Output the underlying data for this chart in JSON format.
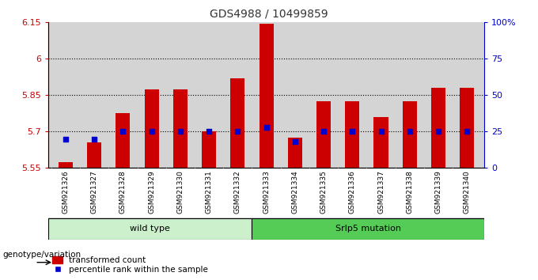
{
  "title": "GDS4988 / 10499859",
  "samples": [
    "GSM921326",
    "GSM921327",
    "GSM921328",
    "GSM921329",
    "GSM921330",
    "GSM921331",
    "GSM921332",
    "GSM921333",
    "GSM921334",
    "GSM921335",
    "GSM921336",
    "GSM921337",
    "GSM921338",
    "GSM921339",
    "GSM921340"
  ],
  "red_values": [
    5.575,
    5.655,
    5.775,
    5.875,
    5.875,
    5.7,
    5.92,
    6.145,
    5.675,
    5.825,
    5.825,
    5.76,
    5.825,
    5.88,
    5.88
  ],
  "blue_pct": [
    20,
    20,
    25,
    25,
    25,
    25,
    25,
    28,
    18,
    25,
    25,
    25,
    25,
    25,
    25
  ],
  "ylim_left": [
    5.55,
    6.15
  ],
  "ylim_right": [
    0,
    100
  ],
  "yticks_left": [
    5.55,
    5.7,
    5.85,
    6.0,
    6.15
  ],
  "yticks_right": [
    0,
    25,
    50,
    75,
    100
  ],
  "ytick_labels_left": [
    "5.55",
    "5.7",
    "5.85",
    "6",
    "6.15"
  ],
  "ytick_labels_right": [
    "0",
    "25",
    "50",
    "75",
    "100%"
  ],
  "hlines": [
    5.7,
    5.85,
    6.0
  ],
  "wild_type_label": "wild type",
  "mutation_label": "Srlp5 mutation",
  "genotype_label": "genotype/variation",
  "legend_red": "transformed count",
  "legend_blue": "percentile rank within the sample",
  "bar_color": "#cc0000",
  "blue_color": "#0000cc",
  "bar_bottom": 5.55,
  "plot_bg": "#d4d4d4",
  "wild_type_bg": "#ccf0cc",
  "mutation_bg": "#55cc55",
  "title_color": "#333333",
  "left_axis_color": "#cc0000",
  "right_axis_color": "#0000cc",
  "wt_count": 7,
  "mut_count": 8
}
